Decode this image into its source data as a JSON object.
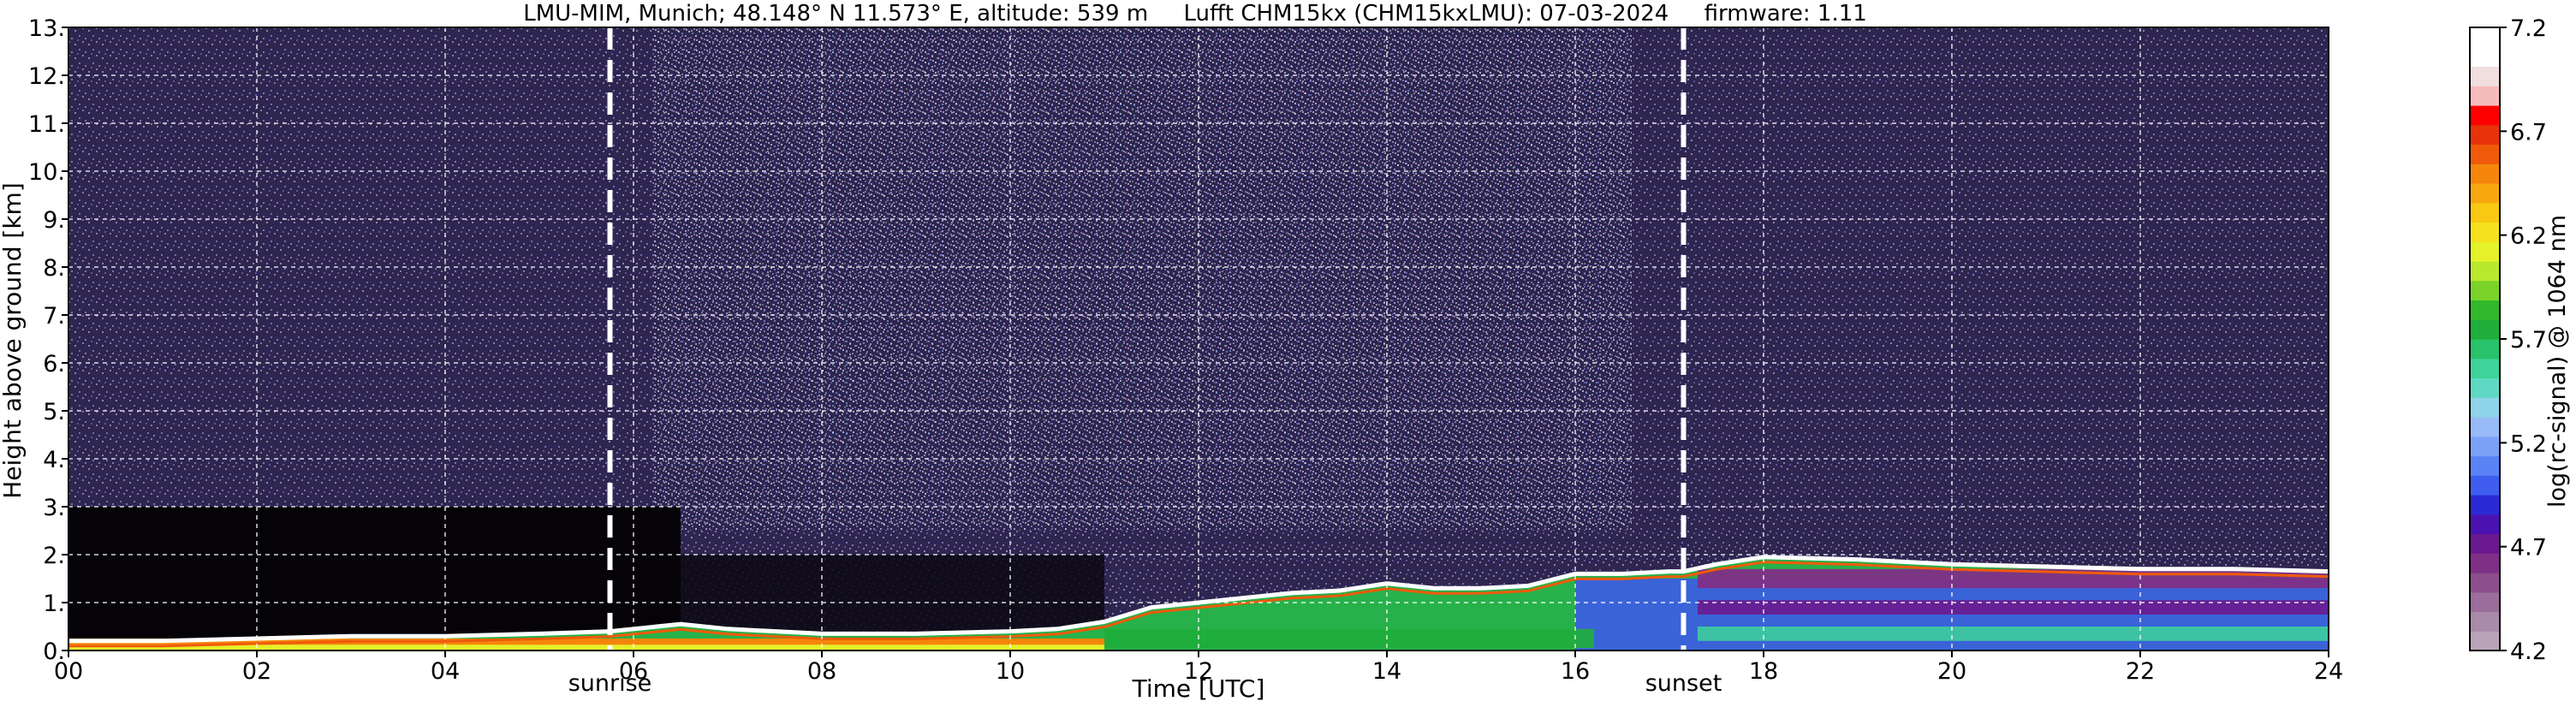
{
  "chart_data": {
    "type": "heatmap",
    "title": "LMU-MIM, Munich; 48.148° N 11.573° E, altitude: 539 m     Lufft CHM15kx (CHM15kxLMU): 07-03-2024     firmware: 1.11",
    "xlabel": "Time [UTC]",
    "ylabel": "Height above ground [km]",
    "xlim": [
      0,
      24
    ],
    "ylim": [
      0,
      13
    ],
    "x_ticks": [
      {
        "v": 0,
        "label": "00"
      },
      {
        "v": 2,
        "label": "02"
      },
      {
        "v": 4,
        "label": "04"
      },
      {
        "v": 6,
        "label": "06"
      },
      {
        "v": 8,
        "label": "08"
      },
      {
        "v": 10,
        "label": "10"
      },
      {
        "v": 12,
        "label": "12"
      },
      {
        "v": 14,
        "label": "14"
      },
      {
        "v": 16,
        "label": "16"
      },
      {
        "v": 18,
        "label": "18"
      },
      {
        "v": 20,
        "label": "20"
      },
      {
        "v": 22,
        "label": "22"
      },
      {
        "v": 24,
        "label": "24"
      }
    ],
    "y_ticks": [
      {
        "v": 0,
        "label": "0."
      },
      {
        "v": 1,
        "label": "1."
      },
      {
        "v": 2,
        "label": "2."
      },
      {
        "v": 3,
        "label": "3."
      },
      {
        "v": 4,
        "label": "4."
      },
      {
        "v": 5,
        "label": "5."
      },
      {
        "v": 6,
        "label": "6."
      },
      {
        "v": 7,
        "label": "7."
      },
      {
        "v": 8,
        "label": "8."
      },
      {
        "v": 9,
        "label": "9."
      },
      {
        "v": 10,
        "label": "10."
      },
      {
        "v": 11,
        "label": "11."
      },
      {
        "v": 12,
        "label": "12."
      },
      {
        "v": 13,
        "label": "13."
      }
    ],
    "grid": true,
    "markers": [
      {
        "name": "sunrise",
        "x": 5.75
      },
      {
        "name": "sunset",
        "x": 17.15
      }
    ],
    "colorbar": {
      "label": "log(rc-signal) @ 1064 nm",
      "range": [
        4.2,
        7.2
      ],
      "ticks": [
        {
          "v": 4.2,
          "label": "4.2"
        },
        {
          "v": 4.7,
          "label": "4.7"
        },
        {
          "v": 5.2,
          "label": "5.2"
        },
        {
          "v": 5.7,
          "label": "5.7"
        },
        {
          "v": 6.2,
          "label": "6.2"
        },
        {
          "v": 6.7,
          "label": "6.7"
        },
        {
          "v": 7.2,
          "label": "7.2"
        }
      ],
      "colors": [
        "#b9a3b9",
        "#a98aa9",
        "#9a6d9a",
        "#8c4e8c",
        "#7f2f86",
        "#6a1a8e",
        "#4a12b0",
        "#2a2ad6",
        "#3f5ef0",
        "#5c83f5",
        "#7ba1f7",
        "#98baf6",
        "#8fd3e8",
        "#5fd8c4",
        "#3ed39a",
        "#28c36a",
        "#1fae3a",
        "#32b82b",
        "#7bd32a",
        "#b9e82c",
        "#e5f22a",
        "#f6e21c",
        "#f9c812",
        "#f8a80e",
        "#f5860b",
        "#f05a0a",
        "#e8320a",
        "#ff0000",
        "#f5bcbc",
        "#f1dede",
        "#ffffff",
        "#ffffff"
      ]
    },
    "series": [
      {
        "name": "aerosol layer top",
        "x": [
          0,
          1,
          2,
          3,
          4,
          5,
          5.75,
          6.5,
          7,
          8,
          9,
          10,
          10.5,
          11,
          11.5,
          12,
          12.5,
          13,
          13.5,
          14,
          14.5,
          15,
          15.5,
          16,
          16.5,
          17,
          17.15,
          17.5,
          18,
          19,
          20,
          21,
          22,
          23,
          24
        ],
        "values": [
          0.2,
          0.2,
          0.25,
          0.3,
          0.3,
          0.35,
          0.4,
          0.55,
          0.45,
          0.35,
          0.35,
          0.4,
          0.45,
          0.6,
          0.9,
          1.0,
          1.1,
          1.2,
          1.25,
          1.4,
          1.3,
          1.3,
          1.35,
          1.6,
          1.6,
          1.65,
          1.65,
          1.8,
          1.95,
          1.9,
          1.8,
          1.75,
          1.7,
          1.7,
          1.65
        ]
      }
    ]
  }
}
